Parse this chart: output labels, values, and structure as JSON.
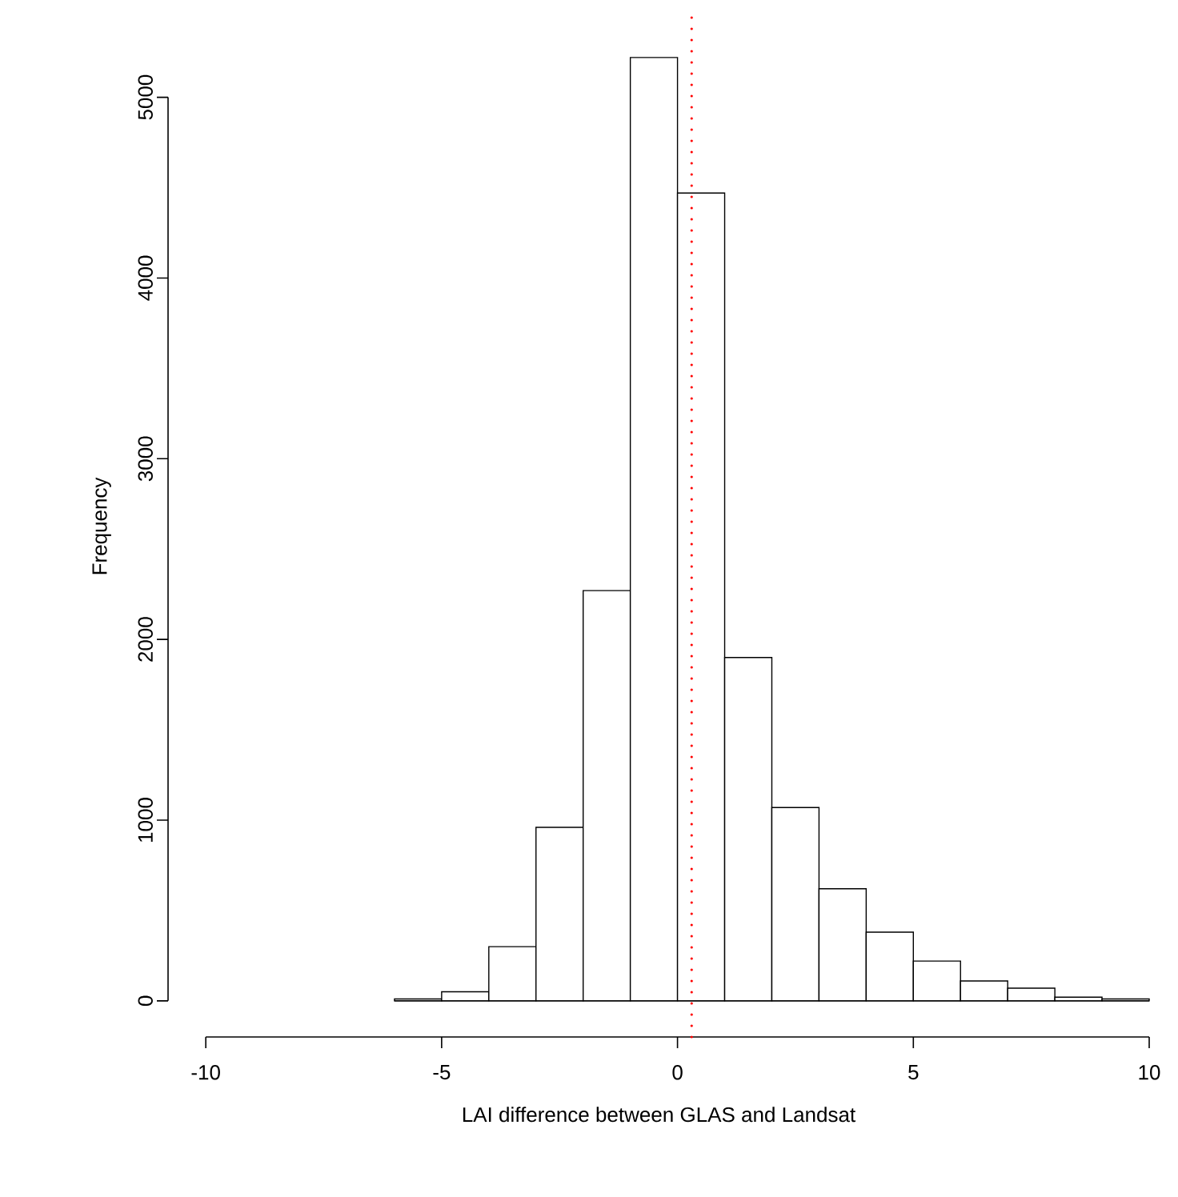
{
  "chart_data": {
    "type": "histogram",
    "xlabel": "LAI difference between GLAS and Landsat",
    "ylabel": "Frequency",
    "bins": [
      -6,
      -5,
      -4,
      -3,
      -2,
      -1,
      0,
      1,
      2,
      3,
      4,
      5,
      6,
      7,
      8,
      9,
      10
    ],
    "values": [
      10,
      50,
      300,
      960,
      2270,
      5220,
      4470,
      1900,
      1070,
      620,
      380,
      220,
      110,
      70,
      20,
      10
    ],
    "color": "#ffffff",
    "xlim": [
      -10.8,
      10
    ],
    "ylim": [
      -200,
      5450
    ],
    "xticks": [
      -10,
      -5,
      0,
      5,
      10
    ],
    "yticks": [
      0,
      1000,
      2000,
      3000,
      4000,
      5000
    ],
    "ref_lines": [
      {
        "axis": "x",
        "value": 0.3,
        "color": "#ff0000",
        "line_style": "dotted"
      }
    ]
  }
}
